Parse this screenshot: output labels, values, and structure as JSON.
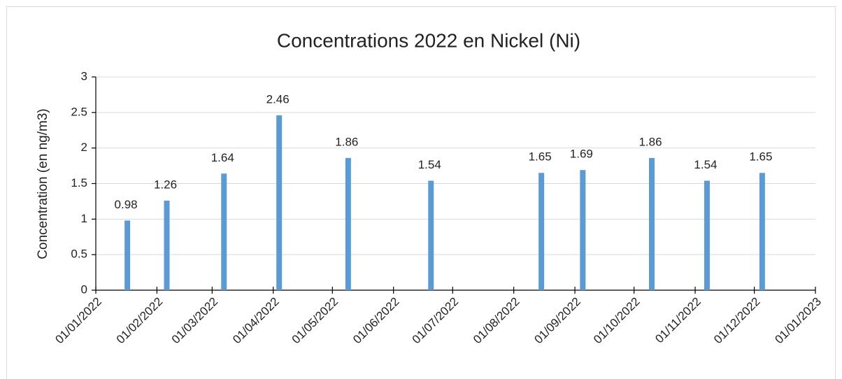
{
  "chart_data": {
    "type": "bar",
    "title": "Concentrations 2022 en Nickel (Ni)",
    "y_label": "Concentration (en ng/m3)",
    "x": [
      "2022-01-17",
      "2022-02-06",
      "2022-03-07",
      "2022-04-04",
      "2022-05-09",
      "2022-06-20",
      "2022-08-15",
      "2022-09-05",
      "2022-10-10",
      "2022-11-07",
      "2022-12-05"
    ],
    "values": [
      0.98,
      1.26,
      1.64,
      2.46,
      1.86,
      1.54,
      1.65,
      1.69,
      1.86,
      1.54,
      1.65
    ],
    "color": "#5b9bd5",
    "xlim": [
      "2022-01-01",
      "2023-01-01"
    ],
    "xticks": [
      {
        "value": "2022-01-01",
        "label": "01/01/2022"
      },
      {
        "value": "2022-02-01",
        "label": "01/02/2022"
      },
      {
        "value": "2022-03-01",
        "label": "01/03/2022"
      },
      {
        "value": "2022-04-01",
        "label": "01/04/2022"
      },
      {
        "value": "2022-05-01",
        "label": "01/05/2022"
      },
      {
        "value": "2022-06-01",
        "label": "01/06/2022"
      },
      {
        "value": "2022-07-01",
        "label": "01/07/2022"
      },
      {
        "value": "2022-08-01",
        "label": "01/08/2022"
      },
      {
        "value": "2022-09-01",
        "label": "01/09/2022"
      },
      {
        "value": "2022-10-01",
        "label": "01/10/2022"
      },
      {
        "value": "2022-11-01",
        "label": "01/11/2022"
      },
      {
        "value": "2022-12-01",
        "label": "01/12/2022"
      },
      {
        "value": "2023-01-01",
        "label": "01/01/2023"
      }
    ],
    "ylim": [
      0,
      3
    ],
    "yticks": [
      0,
      0.5,
      1,
      1.5,
      2,
      2.5,
      3
    ],
    "grid": true
  }
}
